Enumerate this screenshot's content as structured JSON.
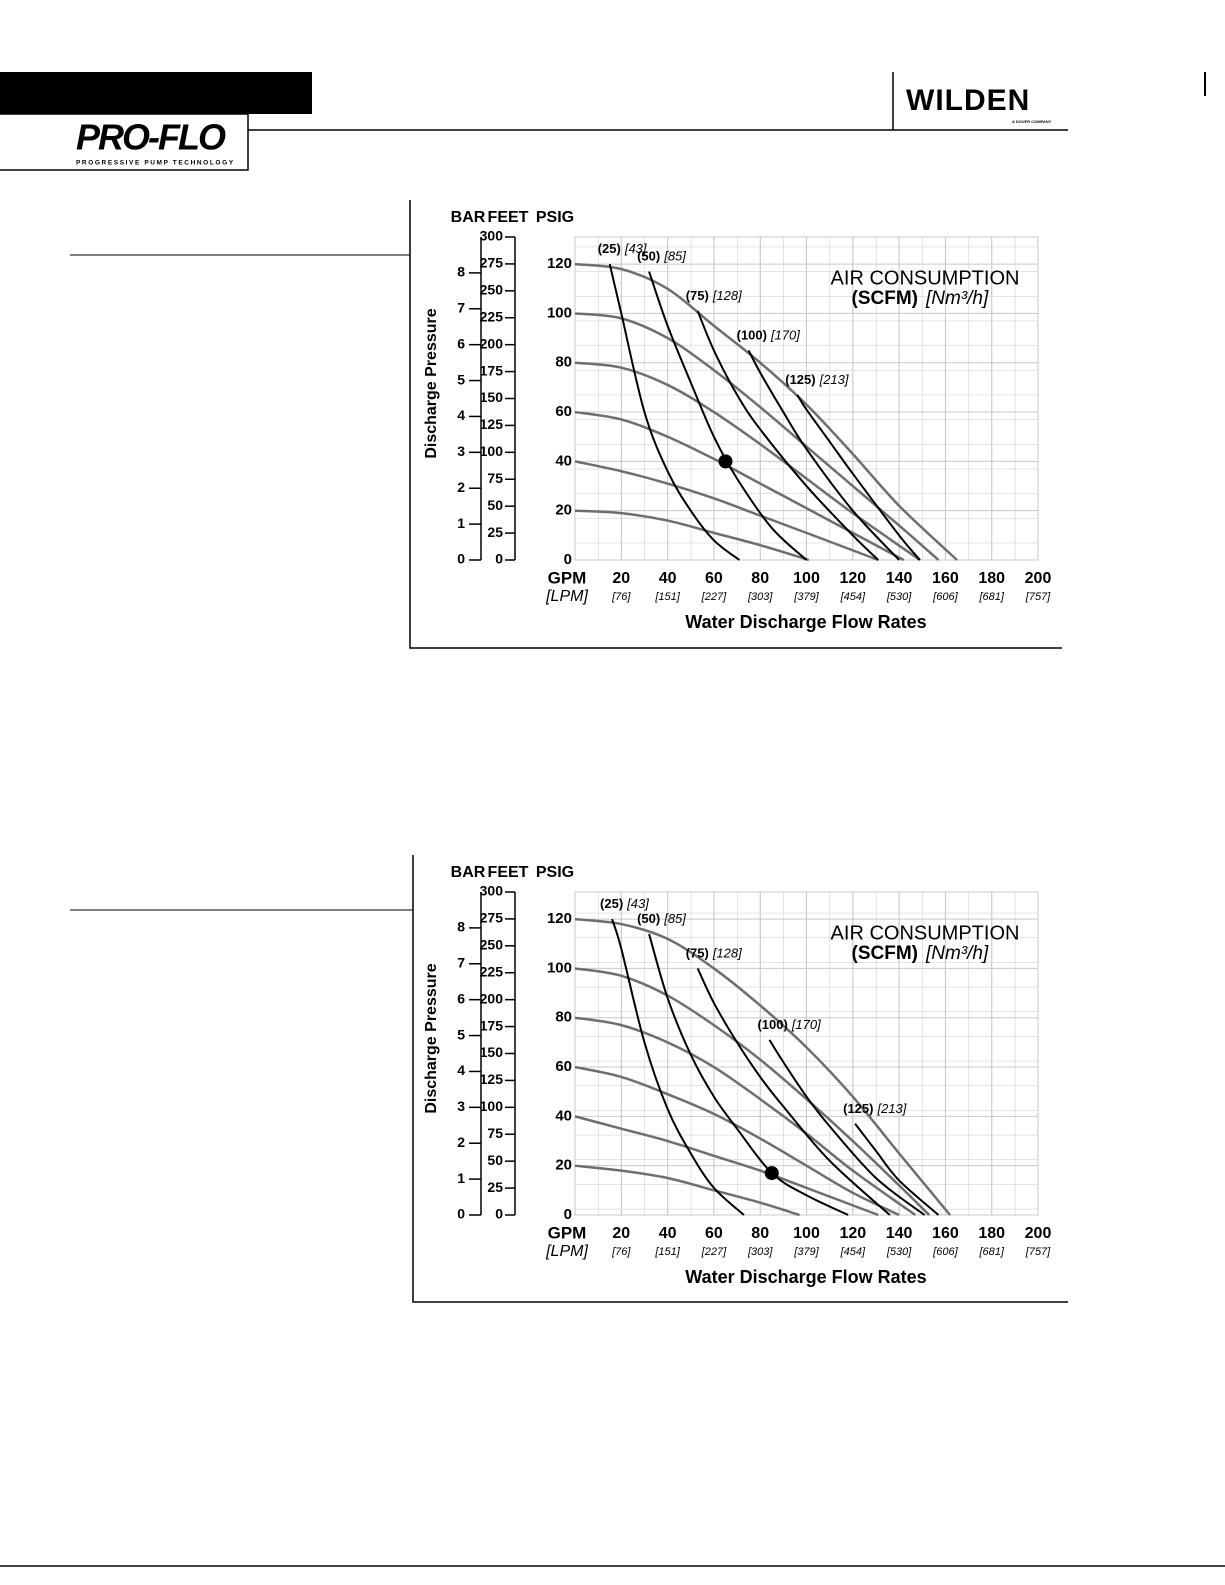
{
  "header": {
    "brand_left": "PRO-FLO",
    "brand_left_tagline": "PROGRESSIVE PUMP TECHNOLOGY",
    "brand_right": "WILDEN",
    "brand_right_tagline": "A DOVER COMPANY"
  },
  "chart_data": [
    {
      "type": "line",
      "y_label": "Discharge Pressure",
      "x_label": "Water Discharge Flow Rates",
      "x_unit": "GPM",
      "x_unit_secondary": "[LPM]",
      "psig_axis_title": "PSIG",
      "feet_axis_title": "FEET",
      "bar_axis_title": "BAR",
      "annotation_title": "AIR CONSUMPTION",
      "annotation_unit": "(SCFM)",
      "annotation_unit_metric": "[Nm³/h]",
      "xlim": [
        0,
        200
      ],
      "xticks": [
        20,
        40,
        60,
        80,
        100,
        120,
        140,
        160,
        180,
        200
      ],
      "x_secondary_labels": [
        "[76]",
        "[151]",
        "[227]",
        "[303]",
        "[379]",
        "[454]",
        "[530]",
        "[606]",
        "[681]",
        "[757]"
      ],
      "ylim": [
        0,
        131
      ],
      "yticks": [
        0,
        20,
        40,
        60,
        80,
        100,
        120
      ],
      "feet_lim": [
        0,
        300
      ],
      "feet_ticks": [
        0,
        25,
        50,
        75,
        100,
        125,
        150,
        175,
        200,
        225,
        250,
        275,
        300
      ],
      "bar_lim": [
        0,
        9
      ],
      "bar_ticks": [
        0,
        1,
        2,
        3,
        4,
        5,
        6,
        7,
        8
      ],
      "grid": true,
      "pressure_curves": [
        {
          "color": "#6e6e6e",
          "x": [
            0,
            20,
            40,
            60,
            80,
            100,
            120,
            140,
            165
          ],
          "values": [
            120,
            118,
            110,
            95,
            80,
            63,
            43,
            22,
            0
          ]
        },
        {
          "color": "#6e6e6e",
          "x": [
            0,
            20,
            40,
            60,
            80,
            100,
            120,
            140,
            157
          ],
          "values": [
            100,
            98,
            90,
            77,
            62,
            46,
            30,
            14,
            0
          ]
        },
        {
          "color": "#6e6e6e",
          "x": [
            0,
            20,
            40,
            60,
            80,
            100,
            120,
            149
          ],
          "values": [
            80,
            78,
            71,
            60,
            47,
            33,
            19,
            0
          ]
        },
        {
          "color": "#6e6e6e",
          "x": [
            0,
            20,
            40,
            60,
            80,
            100,
            120,
            142
          ],
          "values": [
            60,
            57,
            50,
            41,
            31,
            21,
            11,
            0
          ]
        },
        {
          "color": "#6e6e6e",
          "x": [
            0,
            20,
            40,
            60,
            80,
            100,
            131
          ],
          "values": [
            40,
            36,
            31,
            25,
            18,
            11,
            0
          ]
        },
        {
          "color": "#6e6e6e",
          "x": [
            0,
            20,
            40,
            60,
            80,
            101
          ],
          "values": [
            20,
            19,
            16,
            11,
            6,
            0
          ]
        }
      ],
      "series": [
        {
          "name": "(25)",
          "metric_label": "[43]",
          "color": "#000000",
          "x": [
            15,
            20,
            30,
            40,
            50,
            60,
            71
          ],
          "values": [
            120,
            100,
            60,
            36,
            20,
            8,
            0
          ]
        },
        {
          "name": "(50)",
          "metric_label": "[85]",
          "color": "#000000",
          "x": [
            32,
            40,
            50,
            60,
            70,
            85,
            100
          ],
          "values": [
            117,
            95,
            72,
            50,
            33,
            13,
            0
          ]
        },
        {
          "name": "(75)",
          "metric_label": "[128]",
          "color": "#000000",
          "x": [
            53,
            60,
            70,
            80,
            100,
            120,
            131
          ],
          "values": [
            101,
            85,
            67,
            53,
            30,
            10,
            0
          ]
        },
        {
          "name": "(100)",
          "metric_label": "[170]",
          "color": "#000000",
          "x": [
            75,
            80,
            90,
            100,
            120,
            140
          ],
          "values": [
            85,
            76,
            60,
            45,
            20,
            0
          ]
        },
        {
          "name": "(125)",
          "metric_label": "[213]",
          "color": "#000000",
          "x": [
            96,
            100,
            110,
            120,
            140,
            149
          ],
          "values": [
            67,
            61,
            48,
            35,
            10,
            0
          ]
        }
      ],
      "operating_point": {
        "x": 65,
        "y": 40
      }
    },
    {
      "type": "line",
      "y_label": "Discharge Pressure",
      "x_label": "Water Discharge Flow Rates",
      "x_unit": "GPM",
      "x_unit_secondary": "[LPM]",
      "psig_axis_title": "PSIG",
      "feet_axis_title": "FEET",
      "bar_axis_title": "BAR",
      "annotation_title": "AIR CONSUMPTION",
      "annotation_unit": "(SCFM)",
      "annotation_unit_metric": "[Nm³/h]",
      "xlim": [
        0,
        200
      ],
      "xticks": [
        20,
        40,
        60,
        80,
        100,
        120,
        140,
        160,
        180,
        200
      ],
      "x_secondary_labels": [
        "[76]",
        "[151]",
        "[227]",
        "[303]",
        "[379]",
        "[454]",
        "[530]",
        "[606]",
        "[681]",
        "[757]"
      ],
      "ylim": [
        0,
        131
      ],
      "yticks": [
        0,
        20,
        40,
        60,
        80,
        100,
        120
      ],
      "feet_lim": [
        0,
        300
      ],
      "feet_ticks": [
        0,
        25,
        50,
        75,
        100,
        125,
        150,
        175,
        200,
        225,
        250,
        275,
        300
      ],
      "bar_lim": [
        0,
        9
      ],
      "bar_ticks": [
        0,
        1,
        2,
        3,
        4,
        5,
        6,
        7,
        8
      ],
      "grid": true,
      "pressure_curves": [
        {
          "color": "#6e6e6e",
          "x": [
            0,
            20,
            40,
            60,
            80,
            100,
            120,
            140,
            162
          ],
          "values": [
            120,
            118,
            112,
            100,
            85,
            68,
            48,
            25,
            0
          ]
        },
        {
          "color": "#6e6e6e",
          "x": [
            0,
            20,
            40,
            60,
            80,
            100,
            120,
            140,
            153
          ],
          "values": [
            100,
            97,
            89,
            77,
            63,
            47,
            30,
            12,
            0
          ]
        },
        {
          "color": "#6e6e6e",
          "x": [
            0,
            20,
            40,
            60,
            80,
            100,
            120,
            147
          ],
          "values": [
            80,
            77,
            70,
            60,
            47,
            33,
            18,
            0
          ]
        },
        {
          "color": "#6e6e6e",
          "x": [
            0,
            20,
            40,
            60,
            80,
            100,
            120,
            140
          ],
          "values": [
            60,
            56,
            49,
            41,
            31,
            20,
            9,
            0
          ]
        },
        {
          "color": "#6e6e6e",
          "x": [
            0,
            20,
            40,
            60,
            80,
            100,
            131
          ],
          "values": [
            40,
            35,
            30,
            24,
            18,
            11,
            0
          ]
        },
        {
          "color": "#6e6e6e",
          "x": [
            0,
            20,
            40,
            60,
            80,
            97
          ],
          "values": [
            20,
            18,
            15,
            10,
            5,
            0
          ]
        }
      ],
      "series": [
        {
          "name": "(25)",
          "metric_label": "[43]",
          "color": "#000000",
          "x": [
            16,
            20,
            30,
            40,
            50,
            60,
            73
          ],
          "values": [
            120,
            108,
            70,
            43,
            25,
            11,
            0
          ]
        },
        {
          "name": "(50)",
          "metric_label": "[85]",
          "color": "#000000",
          "x": [
            32,
            40,
            50,
            60,
            70,
            85,
            100,
            118
          ],
          "values": [
            114,
            88,
            65,
            48,
            35,
            17,
            8,
            0
          ]
        },
        {
          "name": "(75)",
          "metric_label": "[128]",
          "color": "#000000",
          "x": [
            53,
            60,
            70,
            80,
            90,
            110,
            136
          ],
          "values": [
            100,
            86,
            70,
            56,
            44,
            22,
            0
          ]
        },
        {
          "name": "(100)",
          "metric_label": "[170]",
          "color": "#000000",
          "x": [
            84,
            90,
            100,
            110,
            130,
            151
          ],
          "values": [
            71,
            62,
            48,
            36,
            15,
            0
          ]
        },
        {
          "name": "(125)",
          "metric_label": "[213]",
          "color": "#000000",
          "x": [
            121,
            130,
            140,
            157
          ],
          "values": [
            37,
            26,
            14,
            0
          ]
        }
      ],
      "operating_point": {
        "x": 85,
        "y": 17
      }
    }
  ]
}
